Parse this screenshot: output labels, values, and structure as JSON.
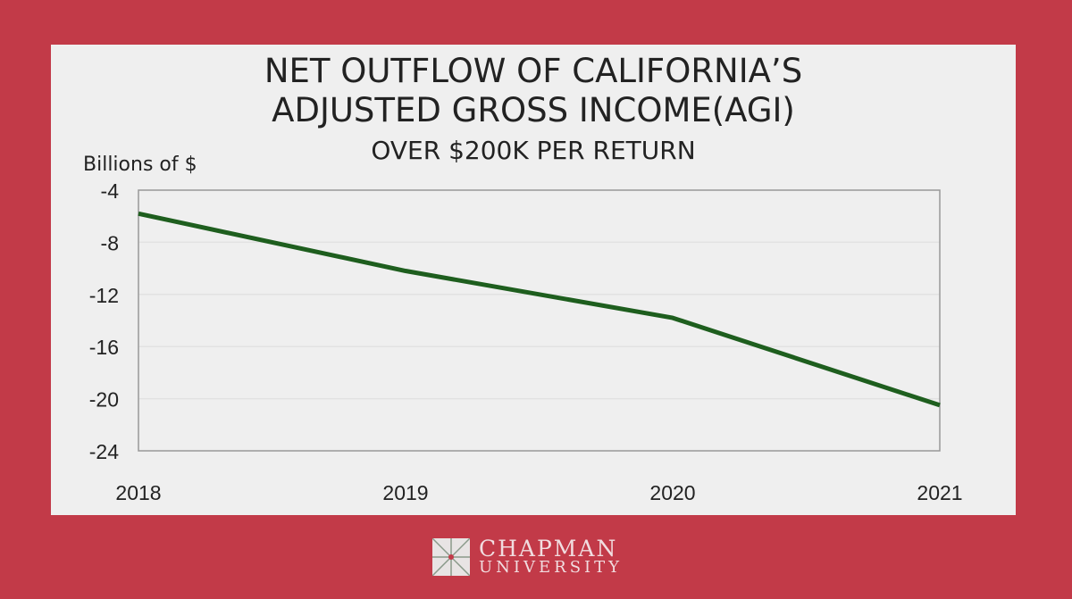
{
  "chart_data": {
    "type": "line",
    "title": "NET OUTFLOW OF CALIFORNIA’S ADJUSTED GROSS INCOME(AGI)",
    "title_line1": "NET OUTFLOW OF CALIFORNIA’S",
    "title_line2": "ADJUSTED GROSS INCOME(AGI)",
    "subtitle": "OVER $200K PER RETURN",
    "ylabel": "Billions of $",
    "xlabel": "",
    "categories": [
      "2018",
      "2019",
      "2020",
      "2021"
    ],
    "values": [
      -5.8,
      -10.2,
      -13.8,
      -20.5
    ],
    "ylim": [
      -24,
      -4
    ],
    "yticks": [
      -4,
      -8,
      -12,
      -16,
      -20,
      -24
    ],
    "grid": true,
    "line_color": "#1e5e1e"
  },
  "footer": {
    "logo_line1": "CHAPMAN",
    "logo_line2": "UNIVERSITY"
  },
  "colors": {
    "background": "#c23a48",
    "panel": "#efefef"
  }
}
